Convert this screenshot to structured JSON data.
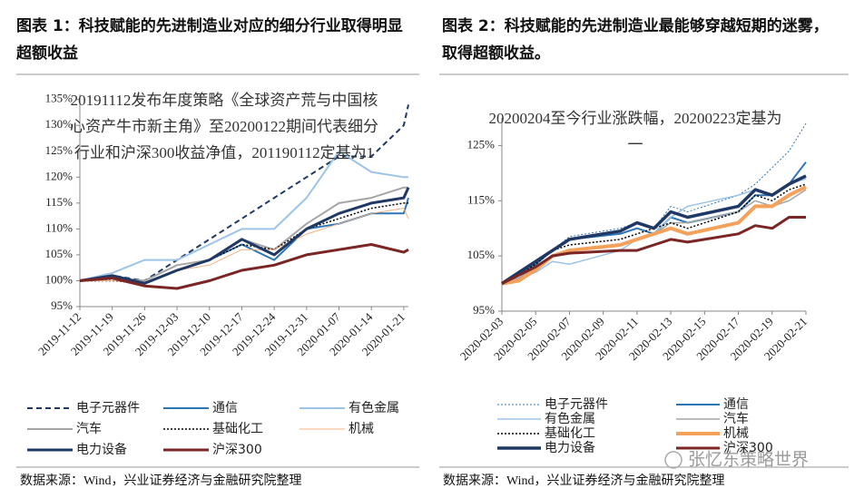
{
  "chart_data": [
    {
      "type": "line",
      "title": "图表 1：科技赋能的先进制造业对应的细分行业取得明显超额收益",
      "annotation": "20191112发布年度策略《全球资产荒与中国核心资产牛市新主角》至20200122期间代表细分行业和沪深300收益净值，201190112定基为1",
      "source": "数据来源：Wind，兴业证券经济与金融研究院整理",
      "x": [
        "2019-11-12",
        "2019-11-19",
        "2019-11-26",
        "2019-12-03",
        "2019-12-10",
        "2019-12-17",
        "2019-12-24",
        "2019-12-31",
        "2020-01-07",
        "2020-01-14",
        "2020-01-21",
        "2020-01-22"
      ],
      "xlim": [
        "2019-11-12",
        "2020-01-22"
      ],
      "xticks": [
        "2019-11-12",
        "2019-11-19",
        "2019-11-26",
        "2019-12-03",
        "2019-12-10",
        "2019-12-17",
        "2019-12-24",
        "2019-12-31",
        "2020-01-07",
        "2020-01-14",
        "2020-01-21"
      ],
      "ylim": [
        95,
        136
      ],
      "yticks": [
        {
          "value": 95,
          "label": "95%"
        },
        {
          "value": 100,
          "label": "100%"
        },
        {
          "value": 105,
          "label": "105%"
        },
        {
          "value": 110,
          "label": "110%"
        },
        {
          "value": 115,
          "label": "115%"
        },
        {
          "value": 120,
          "label": "120%"
        },
        {
          "value": 125,
          "label": "125%"
        },
        {
          "value": 130,
          "label": "130%"
        },
        {
          "value": 135,
          "label": "135%"
        }
      ],
      "series": [
        {
          "name": "电子元器件",
          "color": "#1f3864",
          "dash": "dashed",
          "width": 2,
          "values": [
            100,
            101,
            100,
            104,
            108,
            112,
            116,
            120,
            124,
            124,
            130,
            134
          ]
        },
        {
          "name": "通信",
          "color": "#2e75b6",
          "dash": "solid",
          "width": 2,
          "values": [
            100,
            100.5,
            99.5,
            102,
            104,
            107,
            104,
            110,
            111,
            113,
            113,
            116
          ]
        },
        {
          "name": "有色金属",
          "color": "#9dc3e6",
          "dash": "solid",
          "width": 2,
          "values": [
            100,
            101.5,
            104,
            104,
            107,
            110,
            110,
            116,
            125,
            121,
            120,
            120
          ]
        },
        {
          "name": "汽车",
          "color": "#a5a5a5",
          "dash": "solid",
          "width": 2,
          "values": [
            100,
            100.5,
            100,
            103,
            104,
            108,
            106,
            111,
            115,
            116,
            118,
            118
          ]
        },
        {
          "name": "基础化工",
          "color": "#000000",
          "dash": "dotted",
          "width": 1.5,
          "values": [
            100,
            100,
            99.5,
            102,
            104,
            107,
            106,
            110,
            112,
            114,
            115,
            115
          ]
        },
        {
          "name": "机械",
          "color": "#f4b183",
          "dash": "solid",
          "width": 1,
          "values": [
            100,
            100,
            99.5,
            102,
            103,
            106,
            106,
            109,
            111,
            113,
            114,
            112
          ]
        },
        {
          "name": "电力设备",
          "color": "#203864",
          "dash": "solid",
          "width": 3,
          "values": [
            100,
            101,
            99.5,
            102,
            104,
            108,
            105,
            110,
            113,
            115,
            116,
            118
          ]
        },
        {
          "name": "沪深300",
          "color": "#7b2525",
          "dash": "solid",
          "width": 3,
          "values": [
            100,
            100.5,
            99,
            98.5,
            100,
            102,
            103,
            105,
            106,
            107,
            105.5,
            106
          ]
        }
      ]
    },
    {
      "type": "line",
      "title": "图表 2：科技赋能的先进制造业最能够穿越短期的迷雾，取得超额收益。",
      "annotation": "20200204至今行业涨跌幅，20200223定基为一",
      "source": "数据来源：Wind，兴业证券经济与金融研究院整理",
      "x": [
        "2020-02-03",
        "2020-02-04",
        "2020-02-05",
        "2020-02-06",
        "2020-02-07",
        "2020-02-10",
        "2020-02-11",
        "2020-02-12",
        "2020-02-13",
        "2020-02-14",
        "2020-02-17",
        "2020-02-18",
        "2020-02-19",
        "2020-02-20",
        "2020-02-21"
      ],
      "xlim": [
        "2020-02-03",
        "2020-02-21"
      ],
      "xticks": [
        "2020-02-03",
        "2020-02-05",
        "2020-02-07",
        "2020-02-09",
        "2020-02-11",
        "2020-02-13",
        "2020-02-15",
        "2020-02-17",
        "2020-02-19",
        "2020-02-21"
      ],
      "ylim": [
        95,
        130
      ],
      "yticks": [
        {
          "value": 95,
          "label": "95%"
        },
        {
          "value": 105,
          "label": "105%"
        },
        {
          "value": 115,
          "label": "115%"
        },
        {
          "value": 125,
          "label": "125%"
        }
      ],
      "series": [
        {
          "name": "电子元器件",
          "color": "#2e75b6",
          "dash": "dotted",
          "width": 1,
          "values": [
            100,
            101.5,
            103.5,
            106,
            108.5,
            110,
            111,
            110,
            114,
            113,
            116,
            118,
            121,
            124,
            129
          ]
        },
        {
          "name": "通信",
          "color": "#2e75b6",
          "dash": "solid",
          "width": 2,
          "values": [
            100,
            101.5,
            103.5,
            106,
            108,
            109,
            110,
            109,
            112,
            111,
            113,
            116,
            116,
            118,
            122
          ]
        },
        {
          "name": "有色金属",
          "color": "#9dc3e6",
          "dash": "solid",
          "width": 1.5,
          "values": [
            100,
            101,
            102,
            104,
            103.5,
            106,
            108,
            109,
            112,
            114,
            116,
            117,
            116,
            118,
            119
          ]
        },
        {
          "name": "汽车",
          "color": "#a5a5a5",
          "dash": "solid",
          "width": 1.5,
          "values": [
            100,
            101,
            103,
            105,
            106,
            107,
            108,
            109,
            111,
            111,
            113,
            115,
            114,
            115,
            117
          ]
        },
        {
          "name": "基础化工",
          "color": "#000000",
          "dash": "dotted",
          "width": 1.5,
          "values": [
            100,
            101.5,
            103.5,
            106,
            107,
            108,
            109,
            110,
            111,
            110,
            113,
            116,
            115,
            117,
            118
          ]
        },
        {
          "name": "机械",
          "color": "#f4a15c",
          "dash": "solid",
          "width": 4,
          "values": [
            100,
            100.5,
            102.5,
            105,
            106,
            107,
            108,
            109,
            110,
            109,
            111,
            114,
            114,
            116,
            117.5
          ]
        },
        {
          "name": "电力设备",
          "color": "#203864",
          "dash": "solid",
          "width": 3.5,
          "values": [
            100,
            102,
            104,
            106,
            108,
            109.5,
            111,
            110,
            113,
            112,
            114,
            117,
            116,
            118,
            119.5
          ]
        },
        {
          "name": "沪深300",
          "color": "#7b2525",
          "dash": "solid",
          "width": 3,
          "values": [
            100,
            101.5,
            103,
            105,
            105.5,
            106,
            106,
            107,
            108,
            107.5,
            109,
            110.5,
            110,
            112,
            112
          ]
        }
      ]
    }
  ],
  "watermark": "张忆东策略世界"
}
